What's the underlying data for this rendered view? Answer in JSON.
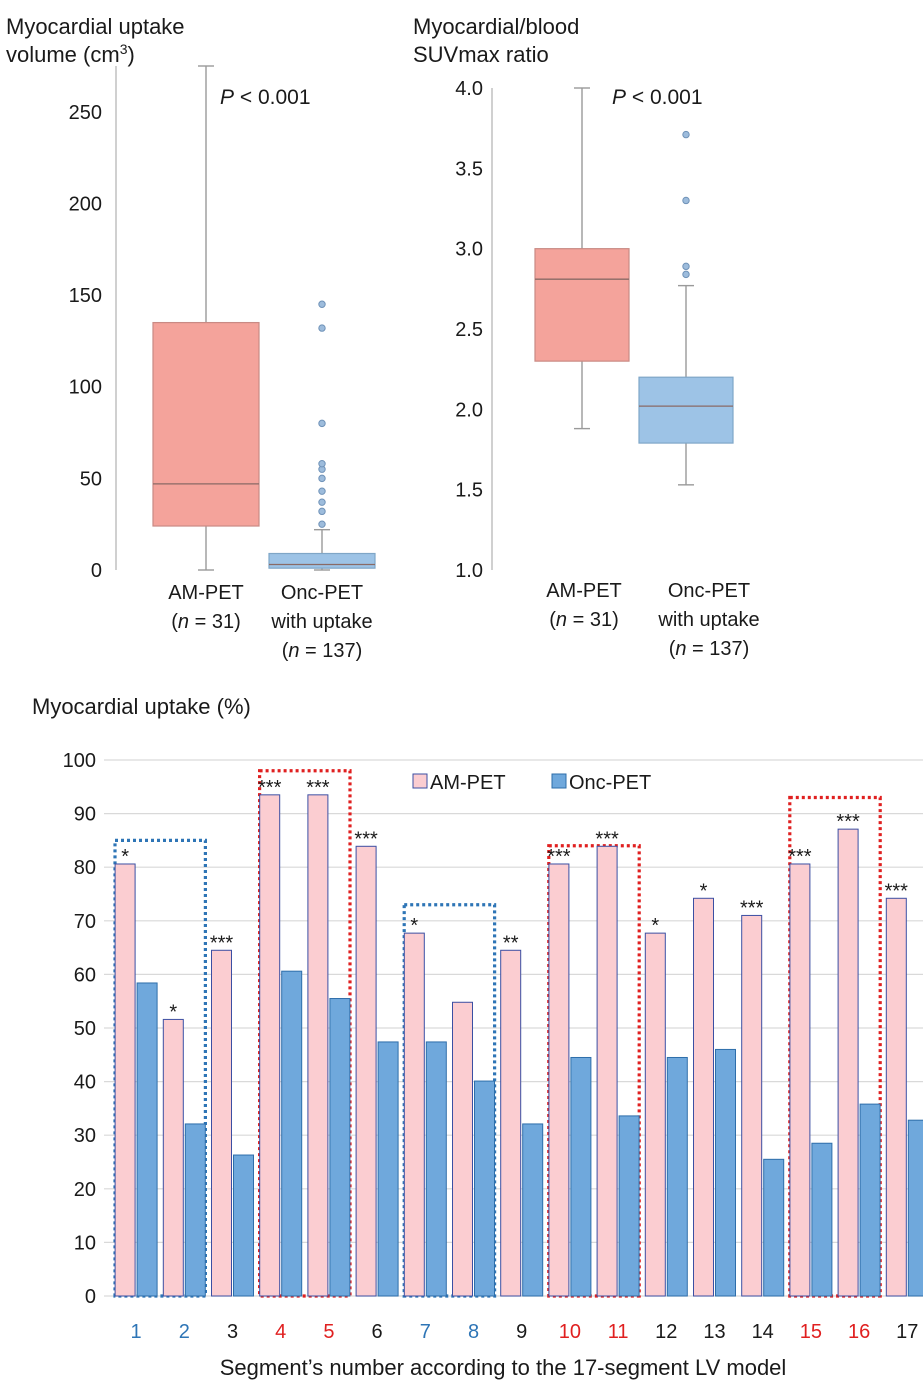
{
  "chart_data": [
    {
      "type": "box",
      "title": "",
      "ylabel": "Myocardial uptake volume (cm³)",
      "ylabel_lines": [
        "Myocardial uptake",
        "volume (cm",
        "3",
        ")"
      ],
      "ylim": [
        0,
        275
      ],
      "yticks": [
        "0",
        "50",
        "100",
        "150",
        "200",
        "250"
      ],
      "ytick_values": [
        0,
        50,
        100,
        150,
        200,
        250
      ],
      "annotation": {
        "p_italic": "P",
        "p_rest": " < 0.001"
      },
      "groups": [
        {
          "label_lines": [
            "AM-PET",
            "(n = 31)"
          ],
          "n_prefix": "(",
          "n_italic": "n",
          "n_rest": " = 31)",
          "label_line1": "AM-PET",
          "color": "#f4a39b",
          "stroke": "#c98a84",
          "whisker_low": 0,
          "q1": 24,
          "median": 47,
          "q3": 135,
          "whisker_high": 275,
          "outliers": []
        },
        {
          "label_line1": "Onc-PET",
          "label_line2": "with uptake",
          "n_prefix": "(",
          "n_italic": "n",
          "n_rest": " = 137)",
          "color": "#9dc3e6",
          "stroke": "#7fa6c7",
          "whisker_low": 0,
          "q1": 1,
          "median": 3,
          "q3": 9,
          "whisker_high": 22,
          "outliers": [
            25,
            32,
            37,
            43,
            50,
            55,
            58,
            80,
            132,
            145
          ]
        }
      ]
    },
    {
      "type": "box",
      "title": "",
      "ylabel": "Myocardial/blood SUVmax ratio",
      "ylabel_lines": [
        "Myocardial/blood",
        "SUVmax ratio"
      ],
      "ylim": [
        1.0,
        4.0
      ],
      "yticks": [
        "1.0",
        "1.5",
        "2.0",
        "2.5",
        "3.0",
        "3.5",
        "4.0"
      ],
      "ytick_values": [
        1.0,
        1.5,
        2.0,
        2.5,
        3.0,
        3.5,
        4.0
      ],
      "annotation": {
        "p_italic": "P",
        "p_rest": " < 0.001"
      },
      "groups": [
        {
          "label_line1": "AM-PET",
          "n_prefix": "(",
          "n_italic": "n",
          "n_rest": " = 31)",
          "color": "#f4a39b",
          "stroke": "#c98a84",
          "whisker_low": 1.88,
          "q1": 2.3,
          "median": 2.81,
          "q3": 3.0,
          "whisker_high": 4.0,
          "outliers": []
        },
        {
          "label_line1": "Onc-PET",
          "label_line2": "with uptake",
          "n_prefix": "(",
          "n_italic": "n",
          "n_rest": " = 137)",
          "color": "#9dc3e6",
          "stroke": "#7fa6c7",
          "whisker_low": 1.53,
          "q1": 1.79,
          "median": 2.02,
          "q3": 2.2,
          "whisker_high": 2.77,
          "outliers": [
            2.84,
            2.89,
            3.3,
            3.71
          ]
        }
      ]
    },
    {
      "type": "bar",
      "title": "",
      "ylabel": "Myocardial uptake (%)",
      "xlabel": "Segment’s number according to the 17-segment LV model",
      "ylim": [
        0,
        100
      ],
      "yticks": [
        "0",
        "10",
        "20",
        "30",
        "40",
        "50",
        "60",
        "70",
        "80",
        "90",
        "100"
      ],
      "ytick_values": [
        0,
        10,
        20,
        30,
        40,
        50,
        60,
        70,
        80,
        90,
        100
      ],
      "grid": true,
      "legend_position": "top",
      "categories": [
        "1",
        "2",
        "3",
        "4",
        "5",
        "6",
        "7",
        "8",
        "9",
        "10",
        "11",
        "12",
        "13",
        "14",
        "15",
        "16",
        "17"
      ],
      "category_colors": [
        "#2e75b6",
        "#2e75b6",
        "#1a1a1a",
        "#e02020",
        "#e02020",
        "#1a1a1a",
        "#2e75b6",
        "#2e75b6",
        "#1a1a1a",
        "#e02020",
        "#e02020",
        "#1a1a1a",
        "#1a1a1a",
        "#1a1a1a",
        "#e02020",
        "#e02020",
        "#1a1a1a"
      ],
      "series": [
        {
          "name": "AM-PET",
          "color": "#fbcdd1",
          "stroke": "#3b4fa3",
          "values": [
            80.6,
            51.6,
            64.5,
            93.5,
            93.5,
            83.9,
            67.7,
            54.8,
            64.5,
            80.6,
            83.9,
            67.7,
            74.2,
            71.0,
            80.6,
            87.1,
            74.2
          ]
        },
        {
          "name": "Onc-PET",
          "color": "#6fa8dc",
          "stroke": "#2e6eaa",
          "values": [
            58.4,
            32.1,
            26.3,
            60.6,
            55.5,
            47.4,
            47.4,
            40.1,
            32.1,
            44.5,
            33.6,
            44.5,
            46.0,
            25.5,
            28.5,
            35.8,
            32.8
          ]
        }
      ],
      "significance": [
        "*",
        "*",
        "***",
        "***",
        "***",
        "***",
        "*",
        "",
        "**",
        "***",
        "***",
        "*",
        "*",
        "***",
        "***",
        "***",
        "***"
      ],
      "highlight_boxes": [
        {
          "from": 1,
          "to": 2,
          "color": "#2e75b6",
          "top_value": 85
        },
        {
          "from": 4,
          "to": 5,
          "color": "#e02020",
          "top_value": 98
        },
        {
          "from": 7,
          "to": 8,
          "color": "#2e75b6",
          "top_value": 73
        },
        {
          "from": 10,
          "to": 11,
          "color": "#e02020",
          "top_value": 84
        },
        {
          "from": 15,
          "to": 16,
          "color": "#e02020",
          "top_value": 93
        }
      ]
    }
  ]
}
